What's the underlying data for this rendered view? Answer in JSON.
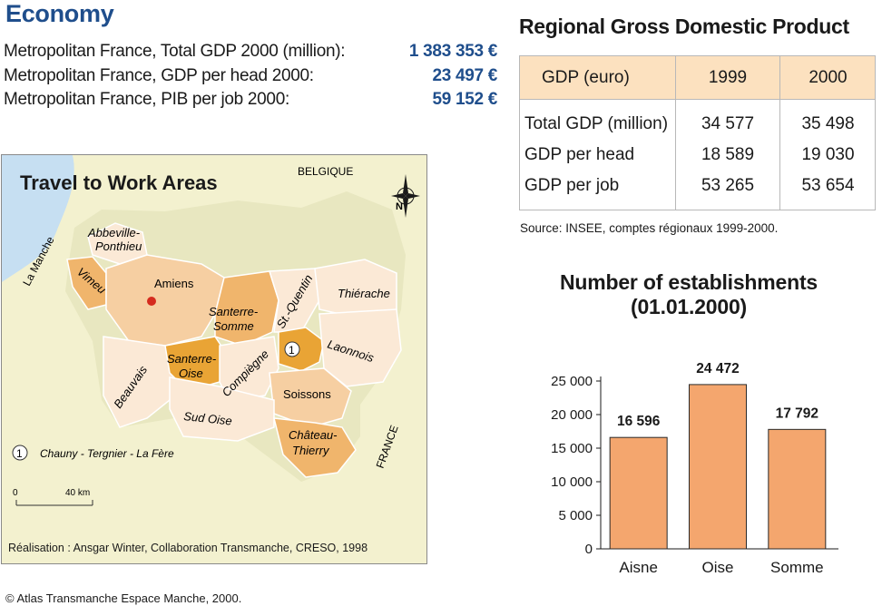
{
  "economy": {
    "title": "Economy",
    "rows": [
      {
        "label": "Metropolitan France, Total GDP 2000 (million):",
        "value": "1 383 353 €"
      },
      {
        "label": "Metropolitan France, GDP per head 2000:",
        "value": "23 497 €"
      },
      {
        "label": "Metropolitan France, PIB per job 2000:",
        "value": "59 152 €"
      }
    ]
  },
  "gdp_table": {
    "title": "Regional Gross Domestic Product",
    "headers": [
      "GDP (euro)",
      "1999",
      "2000"
    ],
    "rows": [
      [
        "Total GDP (million)",
        "34 577",
        "35 498"
      ],
      [
        "GDP per head",
        "18 589",
        "19 030"
      ],
      [
        "GDP per job",
        "53 265",
        "53 654"
      ]
    ],
    "source": "Source: INSEE, comptes régionaux 1999-2000."
  },
  "map": {
    "title": "Travel to Work Areas",
    "labels": {
      "belgique": "BELGIQUE",
      "la_manche": "La Manche",
      "abbeville": "Abbeville-",
      "ponthieu": "Ponthieu",
      "vimeu": "Vimeu",
      "amiens": "Amiens",
      "st_quentin": "St.-Quentin",
      "thierache": "Thiérache",
      "santerre_somme_1": "Santerre-",
      "santerre_somme_2": "Somme",
      "santerre_oise_1": "Santerre-",
      "santerre_oise_2": "Oise",
      "laonnois": "Laonnois",
      "beauvais": "Beauvais",
      "compiegne": "Compiègne",
      "soissons": "Soissons",
      "sud_oise": "Sud Oise",
      "chateau_1": "Château-",
      "chateau_2": "Thierry",
      "france": "FRANCE",
      "marker": "1",
      "legend_marker": "1",
      "legend_text": "Chauny - Tergnier - La Fère",
      "compass_n": "N",
      "scale_0": "0",
      "scale_40": "40 km"
    },
    "credit": "Réalisation : Ansgar Winter, Collaboration Transmanche, CRESO, 1998",
    "colors": {
      "land": "#f3f1cf",
      "sea": "#c6dff2",
      "zone_light": "#fbe9d6",
      "zone_mid": "#f6cfa2",
      "zone_orange": "#f0b56c",
      "zone_dark": "#e9a435",
      "city": "#d52b1e"
    }
  },
  "copyright": "© Atlas Transmanche Espace Manche, 2000.",
  "chart_title_line1": "Number of establishments",
  "chart_title_line2": "(01.01.2000)",
  "chart_data": {
    "type": "bar",
    "title": "Number of establishments (01.01.2000)",
    "categories": [
      "Aisne",
      "Oise",
      "Somme"
    ],
    "values": [
      16596,
      24472,
      17792
    ],
    "value_labels": [
      "16 596",
      "24 472",
      "17 792"
    ],
    "ylim": [
      0,
      25000
    ],
    "yticks": [
      0,
      5000,
      10000,
      15000,
      20000,
      25000
    ],
    "ytick_labels": [
      "0",
      "5 000",
      "10 000",
      "15 000",
      "20 000",
      "25 000"
    ],
    "bar_color": "#f4a66e",
    "grid": false
  }
}
